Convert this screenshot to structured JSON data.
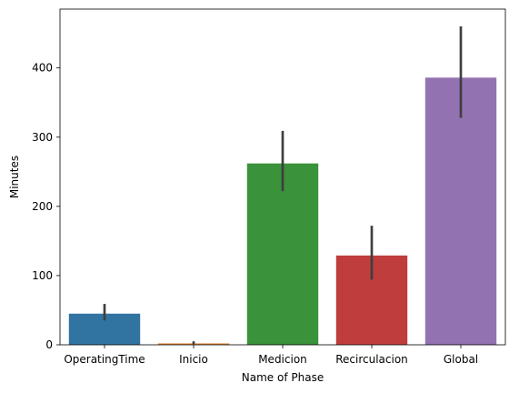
{
  "chart_data": {
    "type": "bar",
    "title": "",
    "xlabel": "Name of Phase",
    "ylabel": "Minutes",
    "categories": [
      "OperatingTime",
      "Inicio",
      "Medicion",
      "Recirculacion",
      "Global"
    ],
    "values": [
      45,
      2,
      262,
      129,
      386
    ],
    "error_low": [
      35,
      1,
      222,
      94,
      328
    ],
    "error_high": [
      59,
      5,
      309,
      172,
      460
    ],
    "ylim": [
      0,
      485
    ],
    "yticks": [
      0,
      100,
      200,
      300,
      400
    ],
    "grid": false,
    "colors": [
      "#3274a1",
      "#e1812c",
      "#3a923a",
      "#c03d3e",
      "#9372b2"
    ],
    "error_bar_color": "#3f3f3f"
  }
}
